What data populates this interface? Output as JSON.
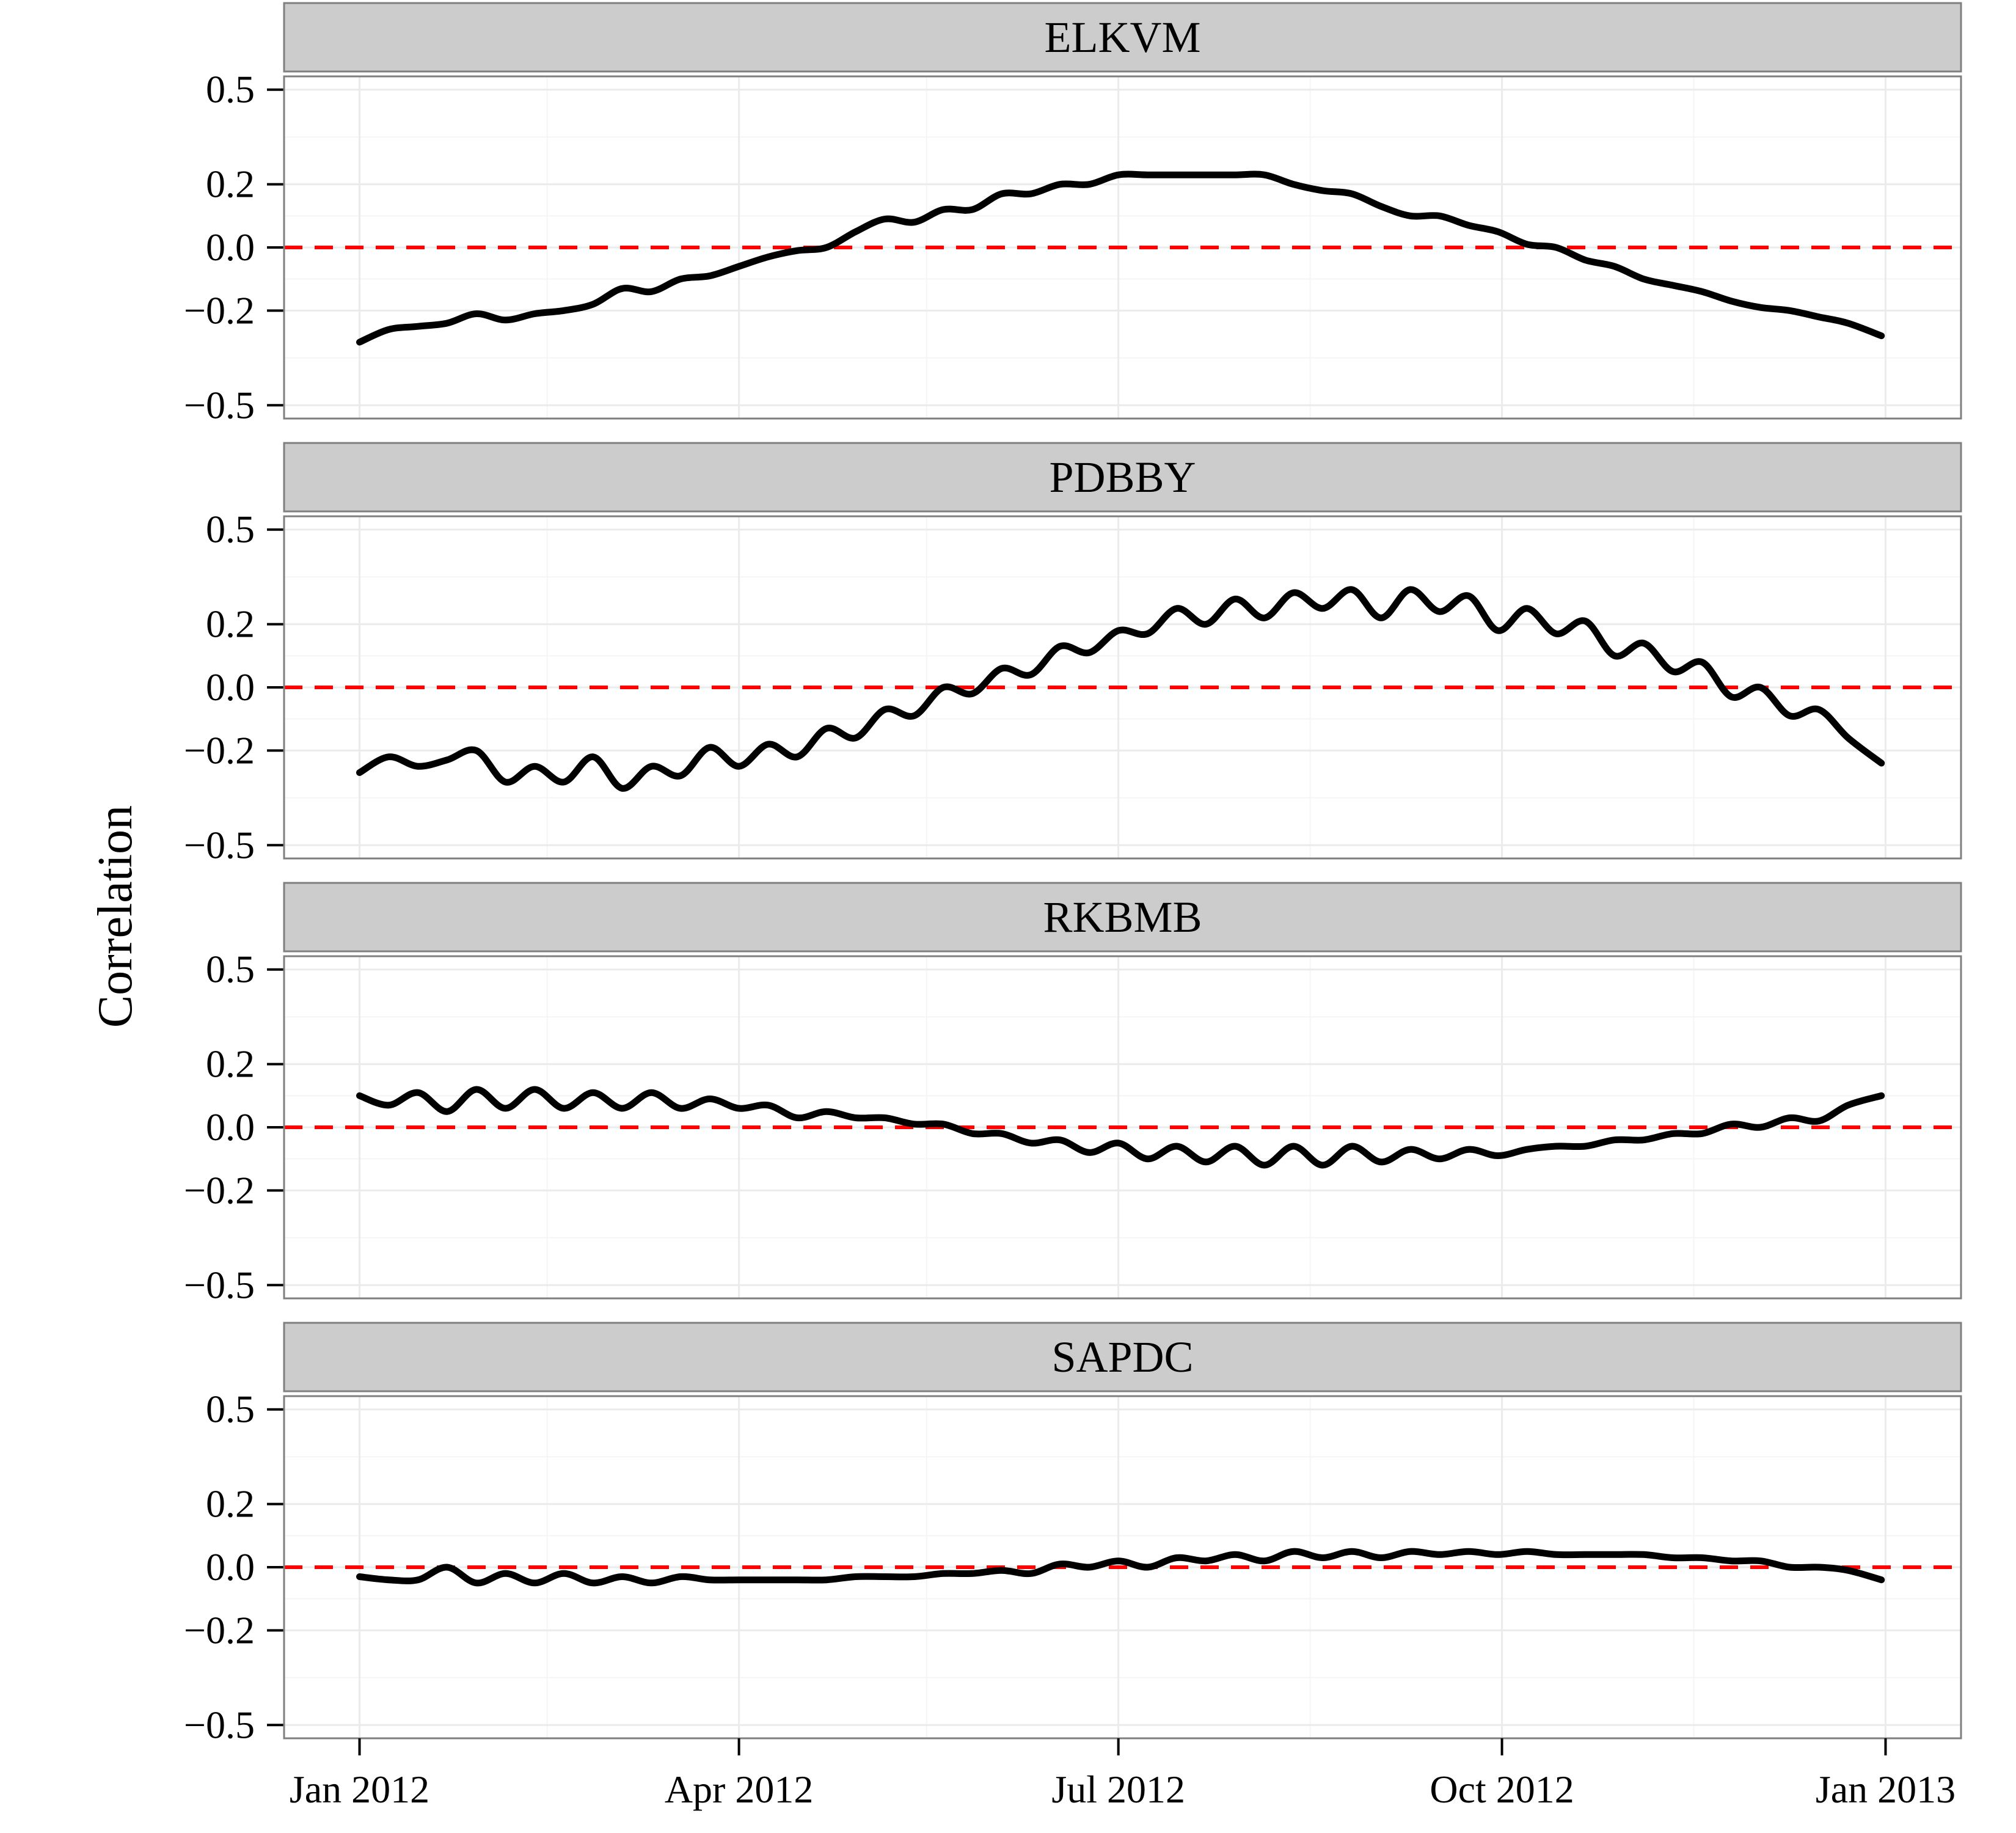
{
  "y_axis_title": "Correlation",
  "x_tick_labels": [
    "Jan 2012",
    "Apr 2012",
    "Jul 2012",
    "Oct 2012",
    "Jan 2013"
  ],
  "y_tick_labels": [
    "0.5",
    "0.2",
    "0.0",
    "−0.2",
    "−0.5"
  ],
  "colors": {
    "series": "#000000",
    "reference_line": "#ff0000",
    "grid": "#ebebeb",
    "strip": "#cccccc"
  },
  "chart_data": {
    "type": "line",
    "layout": "faceted, 4 stacked panels sharing x axis",
    "xlim": [
      "2012-01-01",
      "2013-01-01"
    ],
    "x_ticks": [
      "2012-01-01",
      "2012-04-01",
      "2012-07-01",
      "2012-10-01",
      "2013-01-01"
    ],
    "ylim": [
      -0.5,
      0.5
    ],
    "y_ticks": [
      0.5,
      0.2,
      0.0,
      -0.2,
      -0.5
    ],
    "reference_line": {
      "y": 0,
      "style": "dashed",
      "color": "#ff0000"
    },
    "grid": true,
    "panels": [
      {
        "name": "ELKVM",
        "points": [
          [
            "2012-01-01",
            -0.3
          ],
          [
            "2012-01-08",
            -0.26
          ],
          [
            "2012-01-15",
            -0.25
          ],
          [
            "2012-01-22",
            -0.24
          ],
          [
            "2012-01-29",
            -0.21
          ],
          [
            "2012-02-05",
            -0.23
          ],
          [
            "2012-02-12",
            -0.21
          ],
          [
            "2012-02-19",
            -0.2
          ],
          [
            "2012-02-26",
            -0.18
          ],
          [
            "2012-03-04",
            -0.13
          ],
          [
            "2012-03-11",
            -0.14
          ],
          [
            "2012-03-18",
            -0.1
          ],
          [
            "2012-03-25",
            -0.09
          ],
          [
            "2012-04-01",
            -0.06
          ],
          [
            "2012-04-08",
            -0.03
          ],
          [
            "2012-04-15",
            -0.01
          ],
          [
            "2012-04-22",
            0.0
          ],
          [
            "2012-04-29",
            0.05
          ],
          [
            "2012-05-06",
            0.09
          ],
          [
            "2012-05-13",
            0.08
          ],
          [
            "2012-05-20",
            0.12
          ],
          [
            "2012-05-27",
            0.12
          ],
          [
            "2012-06-03",
            0.17
          ],
          [
            "2012-06-10",
            0.17
          ],
          [
            "2012-06-17",
            0.2
          ],
          [
            "2012-06-24",
            0.2
          ],
          [
            "2012-07-01",
            0.23
          ],
          [
            "2012-07-08",
            0.23
          ],
          [
            "2012-07-15",
            0.23
          ],
          [
            "2012-07-22",
            0.23
          ],
          [
            "2012-07-29",
            0.23
          ],
          [
            "2012-08-05",
            0.23
          ],
          [
            "2012-08-12",
            0.2
          ],
          [
            "2012-08-19",
            0.18
          ],
          [
            "2012-08-26",
            0.17
          ],
          [
            "2012-09-02",
            0.13
          ],
          [
            "2012-09-09",
            0.1
          ],
          [
            "2012-09-16",
            0.1
          ],
          [
            "2012-09-23",
            0.07
          ],
          [
            "2012-09-30",
            0.05
          ],
          [
            "2012-10-07",
            0.01
          ],
          [
            "2012-10-14",
            0.0
          ],
          [
            "2012-10-21",
            -0.04
          ],
          [
            "2012-10-28",
            -0.06
          ],
          [
            "2012-11-04",
            -0.1
          ],
          [
            "2012-11-11",
            -0.12
          ],
          [
            "2012-11-18",
            -0.14
          ],
          [
            "2012-11-25",
            -0.17
          ],
          [
            "2012-12-02",
            -0.19
          ],
          [
            "2012-12-09",
            -0.2
          ],
          [
            "2012-12-16",
            -0.22
          ],
          [
            "2012-12-23",
            -0.24
          ],
          [
            "2012-12-31",
            -0.28
          ]
        ]
      },
      {
        "name": "PDBBY",
        "points": [
          [
            "2012-01-01",
            -0.27
          ],
          [
            "2012-01-08",
            -0.22
          ],
          [
            "2012-01-15",
            -0.25
          ],
          [
            "2012-01-22",
            -0.23
          ],
          [
            "2012-01-29",
            -0.2
          ],
          [
            "2012-02-05",
            -0.3
          ],
          [
            "2012-02-12",
            -0.25
          ],
          [
            "2012-02-19",
            -0.3
          ],
          [
            "2012-02-26",
            -0.22
          ],
          [
            "2012-03-04",
            -0.32
          ],
          [
            "2012-03-11",
            -0.25
          ],
          [
            "2012-03-18",
            -0.28
          ],
          [
            "2012-03-25",
            -0.19
          ],
          [
            "2012-04-01",
            -0.25
          ],
          [
            "2012-04-08",
            -0.18
          ],
          [
            "2012-04-15",
            -0.22
          ],
          [
            "2012-04-22",
            -0.13
          ],
          [
            "2012-04-29",
            -0.16
          ],
          [
            "2012-05-06",
            -0.07
          ],
          [
            "2012-05-13",
            -0.09
          ],
          [
            "2012-05-20",
            0.0
          ],
          [
            "2012-05-27",
            -0.02
          ],
          [
            "2012-06-03",
            0.06
          ],
          [
            "2012-06-10",
            0.04
          ],
          [
            "2012-06-17",
            0.13
          ],
          [
            "2012-06-24",
            0.11
          ],
          [
            "2012-07-01",
            0.18
          ],
          [
            "2012-07-08",
            0.17
          ],
          [
            "2012-07-15",
            0.25
          ],
          [
            "2012-07-22",
            0.2
          ],
          [
            "2012-07-29",
            0.28
          ],
          [
            "2012-08-05",
            0.22
          ],
          [
            "2012-08-12",
            0.3
          ],
          [
            "2012-08-19",
            0.25
          ],
          [
            "2012-08-26",
            0.31
          ],
          [
            "2012-09-02",
            0.22
          ],
          [
            "2012-09-09",
            0.31
          ],
          [
            "2012-09-16",
            0.24
          ],
          [
            "2012-09-23",
            0.29
          ],
          [
            "2012-09-30",
            0.18
          ],
          [
            "2012-10-07",
            0.25
          ],
          [
            "2012-10-14",
            0.17
          ],
          [
            "2012-10-21",
            0.21
          ],
          [
            "2012-10-28",
            0.1
          ],
          [
            "2012-11-04",
            0.14
          ],
          [
            "2012-11-11",
            0.05
          ],
          [
            "2012-11-18",
            0.08
          ],
          [
            "2012-11-25",
            -0.03
          ],
          [
            "2012-12-02",
            0.0
          ],
          [
            "2012-12-09",
            -0.09
          ],
          [
            "2012-12-16",
            -0.07
          ],
          [
            "2012-12-23",
            -0.16
          ],
          [
            "2012-12-31",
            -0.24
          ]
        ]
      },
      {
        "name": "RKBMB",
        "points": [
          [
            "2012-01-01",
            0.1
          ],
          [
            "2012-01-08",
            0.07
          ],
          [
            "2012-01-15",
            0.11
          ],
          [
            "2012-01-22",
            0.05
          ],
          [
            "2012-01-29",
            0.12
          ],
          [
            "2012-02-05",
            0.06
          ],
          [
            "2012-02-12",
            0.12
          ],
          [
            "2012-02-19",
            0.06
          ],
          [
            "2012-02-26",
            0.11
          ],
          [
            "2012-03-04",
            0.06
          ],
          [
            "2012-03-11",
            0.11
          ],
          [
            "2012-03-18",
            0.06
          ],
          [
            "2012-03-25",
            0.09
          ],
          [
            "2012-04-01",
            0.06
          ],
          [
            "2012-04-08",
            0.07
          ],
          [
            "2012-04-15",
            0.03
          ],
          [
            "2012-04-22",
            0.05
          ],
          [
            "2012-04-29",
            0.03
          ],
          [
            "2012-05-06",
            0.03
          ],
          [
            "2012-05-13",
            0.01
          ],
          [
            "2012-05-20",
            0.01
          ],
          [
            "2012-05-27",
            -0.02
          ],
          [
            "2012-06-03",
            -0.02
          ],
          [
            "2012-06-10",
            -0.05
          ],
          [
            "2012-06-17",
            -0.04
          ],
          [
            "2012-06-24",
            -0.08
          ],
          [
            "2012-07-01",
            -0.05
          ],
          [
            "2012-07-08",
            -0.1
          ],
          [
            "2012-07-15",
            -0.06
          ],
          [
            "2012-07-22",
            -0.11
          ],
          [
            "2012-07-29",
            -0.06
          ],
          [
            "2012-08-05",
            -0.12
          ],
          [
            "2012-08-12",
            -0.06
          ],
          [
            "2012-08-19",
            -0.12
          ],
          [
            "2012-08-26",
            -0.06
          ],
          [
            "2012-09-02",
            -0.11
          ],
          [
            "2012-09-09",
            -0.07
          ],
          [
            "2012-09-16",
            -0.1
          ],
          [
            "2012-09-23",
            -0.07
          ],
          [
            "2012-09-30",
            -0.09
          ],
          [
            "2012-10-07",
            -0.07
          ],
          [
            "2012-10-14",
            -0.06
          ],
          [
            "2012-10-21",
            -0.06
          ],
          [
            "2012-10-28",
            -0.04
          ],
          [
            "2012-11-04",
            -0.04
          ],
          [
            "2012-11-11",
            -0.02
          ],
          [
            "2012-11-18",
            -0.02
          ],
          [
            "2012-11-25",
            0.01
          ],
          [
            "2012-12-02",
            0.0
          ],
          [
            "2012-12-09",
            0.03
          ],
          [
            "2012-12-16",
            0.02
          ],
          [
            "2012-12-23",
            0.07
          ],
          [
            "2012-12-31",
            0.1
          ]
        ]
      },
      {
        "name": "SAPDC",
        "points": [
          [
            "2012-01-01",
            -0.03
          ],
          [
            "2012-01-08",
            -0.04
          ],
          [
            "2012-01-15",
            -0.04
          ],
          [
            "2012-01-22",
            0.0
          ],
          [
            "2012-01-29",
            -0.05
          ],
          [
            "2012-02-05",
            -0.02
          ],
          [
            "2012-02-12",
            -0.05
          ],
          [
            "2012-02-19",
            -0.02
          ],
          [
            "2012-02-26",
            -0.05
          ],
          [
            "2012-03-04",
            -0.03
          ],
          [
            "2012-03-11",
            -0.05
          ],
          [
            "2012-03-18",
            -0.03
          ],
          [
            "2012-03-25",
            -0.04
          ],
          [
            "2012-04-01",
            -0.04
          ],
          [
            "2012-04-08",
            -0.04
          ],
          [
            "2012-04-15",
            -0.04
          ],
          [
            "2012-04-22",
            -0.04
          ],
          [
            "2012-04-29",
            -0.03
          ],
          [
            "2012-05-06",
            -0.03
          ],
          [
            "2012-05-13",
            -0.03
          ],
          [
            "2012-05-20",
            -0.02
          ],
          [
            "2012-05-27",
            -0.02
          ],
          [
            "2012-06-03",
            -0.01
          ],
          [
            "2012-06-10",
            -0.02
          ],
          [
            "2012-06-17",
            0.01
          ],
          [
            "2012-06-24",
            0.0
          ],
          [
            "2012-07-01",
            0.02
          ],
          [
            "2012-07-08",
            0.0
          ],
          [
            "2012-07-15",
            0.03
          ],
          [
            "2012-07-22",
            0.02
          ],
          [
            "2012-07-29",
            0.04
          ],
          [
            "2012-08-05",
            0.02
          ],
          [
            "2012-08-12",
            0.05
          ],
          [
            "2012-08-19",
            0.03
          ],
          [
            "2012-08-26",
            0.05
          ],
          [
            "2012-09-02",
            0.03
          ],
          [
            "2012-09-09",
            0.05
          ],
          [
            "2012-09-16",
            0.04
          ],
          [
            "2012-09-23",
            0.05
          ],
          [
            "2012-09-30",
            0.04
          ],
          [
            "2012-10-07",
            0.05
          ],
          [
            "2012-10-14",
            0.04
          ],
          [
            "2012-10-21",
            0.04
          ],
          [
            "2012-10-28",
            0.04
          ],
          [
            "2012-11-04",
            0.04
          ],
          [
            "2012-11-11",
            0.03
          ],
          [
            "2012-11-18",
            0.03
          ],
          [
            "2012-11-25",
            0.02
          ],
          [
            "2012-12-02",
            0.02
          ],
          [
            "2012-12-09",
            0.0
          ],
          [
            "2012-12-16",
            0.0
          ],
          [
            "2012-12-23",
            -0.01
          ],
          [
            "2012-12-31",
            -0.04
          ]
        ]
      }
    ]
  }
}
